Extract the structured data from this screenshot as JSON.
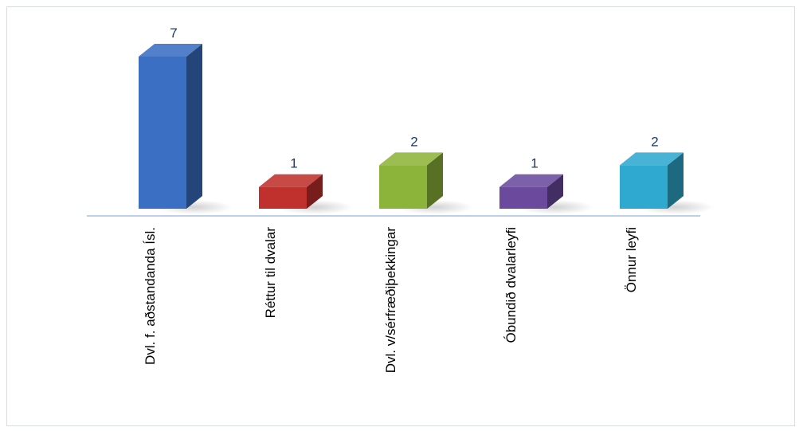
{
  "chart_data": {
    "type": "bar",
    "style": "3d-column",
    "categories": [
      "Dvl. f. aðstandanda Ísl.",
      "Réttur til dvalar",
      "Dvl. v/sérfræðiþekkingar",
      "Óbundið dvalarleyfi",
      "Önnur leyfi"
    ],
    "values": [
      7,
      1,
      2,
      1,
      2
    ],
    "data_labels": [
      "7",
      "1",
      "2",
      "1",
      "2"
    ],
    "colors": [
      "#3a6fc4",
      "#c0312d",
      "#8db43a",
      "#6b4a9e",
      "#2fa9cf"
    ],
    "axis_line_color": "#bcd0e6",
    "ylim": [
      0,
      7.6
    ],
    "grid": false,
    "legend": "none",
    "title": "",
    "xlabel": "",
    "ylabel": ""
  }
}
